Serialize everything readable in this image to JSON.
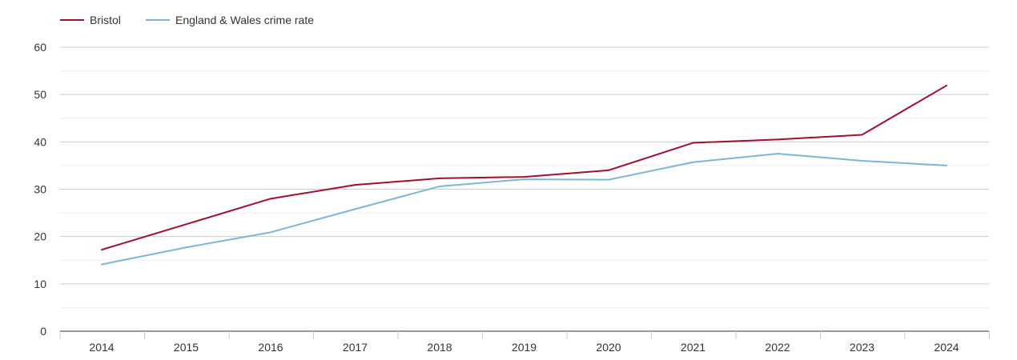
{
  "chart_data": {
    "type": "line",
    "title": "",
    "xlabel": "",
    "ylabel": "",
    "categories": [
      "2014",
      "2015",
      "2016",
      "2017",
      "2018",
      "2019",
      "2020",
      "2021",
      "2022",
      "2023",
      "2024"
    ],
    "ylim": [
      0,
      60
    ],
    "yticks": [
      0,
      10,
      20,
      30,
      40,
      50,
      60
    ],
    "grid": true,
    "legend_position": "top-left",
    "series": [
      {
        "name": "Bristol",
        "color": "#a0102e",
        "values": [
          17.2,
          22.6,
          28.0,
          30.9,
          32.3,
          32.6,
          34.0,
          39.8,
          40.5,
          41.5,
          51.9
        ]
      },
      {
        "name": "England & Wales crime rate",
        "color": "#7eb4d6",
        "values": [
          14.1,
          17.7,
          20.9,
          25.8,
          30.6,
          32.1,
          32.0,
          35.7,
          37.5,
          36.0,
          35.0
        ]
      }
    ]
  }
}
